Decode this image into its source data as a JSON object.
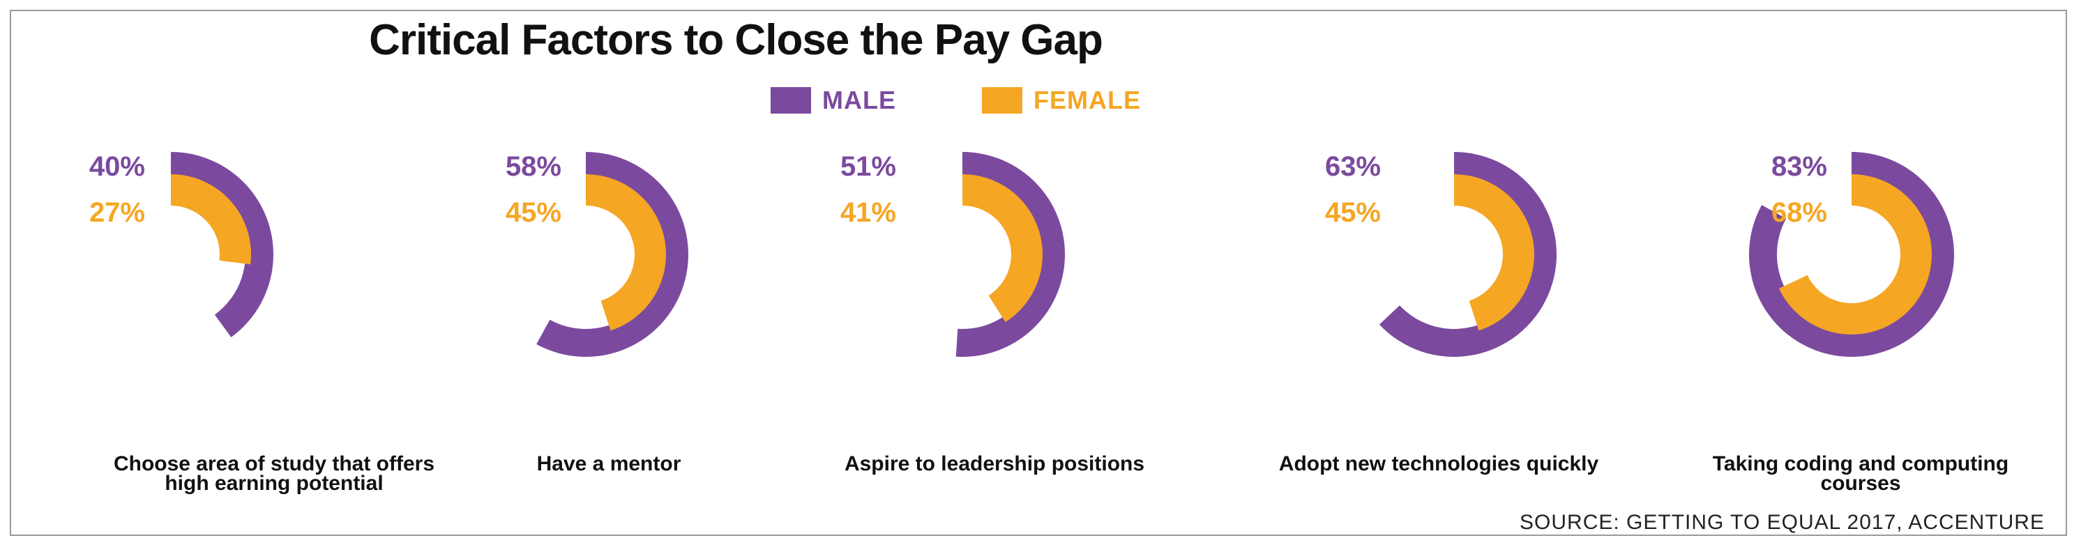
{
  "colors": {
    "male": "#7b4a9e",
    "female": "#f5a623"
  },
  "chart_data": {
    "type": "radial-bar",
    "title": "Critical Factors to Close the Pay Gap",
    "legend": [
      {
        "name": "MALE",
        "color": "#7b4a9e"
      },
      {
        "name": "FEMALE",
        "color": "#f5a623"
      }
    ],
    "categories": [
      {
        "caption": [
          "Choose area of study that offers",
          "high earning potential"
        ],
        "male": 40,
        "female": 27,
        "male_label": "40%",
        "female_label": "27%"
      },
      {
        "caption": [
          "Have a mentor"
        ],
        "male": 58,
        "female": 45,
        "male_label": "58%",
        "female_label": "45%"
      },
      {
        "caption": [
          "Aspire to leadership positions"
        ],
        "male": 51,
        "female": 41,
        "male_label": "51%",
        "female_label": "41%"
      },
      {
        "caption": [
          "Adopt new technologies quickly"
        ],
        "male": 63,
        "female": 45,
        "male_label": "63%",
        "female_label": "45%"
      },
      {
        "caption": [
          "Taking coding and computing",
          "courses"
        ],
        "male": 83,
        "female": 68,
        "male_label": "83%",
        "female_label": "68%"
      }
    ],
    "series": [
      {
        "name": "MALE",
        "values": [
          40,
          58,
          51,
          63,
          83
        ]
      },
      {
        "name": "FEMALE",
        "values": [
          27,
          45,
          41,
          45,
          68
        ]
      }
    ],
    "unit": "%",
    "source": "SOURCE: GETTING TO EQUAL 2017, ACCENTURE"
  }
}
